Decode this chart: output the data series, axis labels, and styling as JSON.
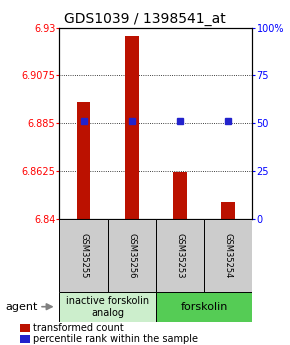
{
  "title": "GDS1039 / 1398541_at",
  "samples": [
    "GSM35255",
    "GSM35256",
    "GSM35253",
    "GSM35254"
  ],
  "bar_values": [
    6.895,
    6.926,
    6.862,
    6.848
  ],
  "bar_base": 6.84,
  "percentile_values": [
    6.886,
    6.886,
    6.886,
    6.886
  ],
  "ylim_left": [
    6.84,
    6.93
  ],
  "ylim_right": [
    0,
    100
  ],
  "yticks_left": [
    6.84,
    6.8625,
    6.885,
    6.9075,
    6.93
  ],
  "yticks_right": [
    0,
    25,
    50,
    75,
    100
  ],
  "ytick_labels_left": [
    "6.84",
    "6.8625",
    "6.885",
    "6.9075",
    "6.93"
  ],
  "ytick_labels_right": [
    "0",
    "25",
    "50",
    "75",
    "100%"
  ],
  "hlines": [
    6.8625,
    6.885,
    6.9075
  ],
  "bar_color": "#bb1100",
  "percentile_color": "#2222cc",
  "agent_label": "agent",
  "group1_label": "inactive forskolin\nanalog",
  "group2_label": "forskolin",
  "group1_color": "#cceecc",
  "group2_color": "#55cc55",
  "legend_bar_label": "transformed count",
  "legend_pct_label": "percentile rank within the sample",
  "title_fontsize": 10,
  "tick_fontsize": 7,
  "sample_fontsize": 6,
  "group_fontsize": 7,
  "legend_fontsize": 7,
  "agent_fontsize": 8
}
